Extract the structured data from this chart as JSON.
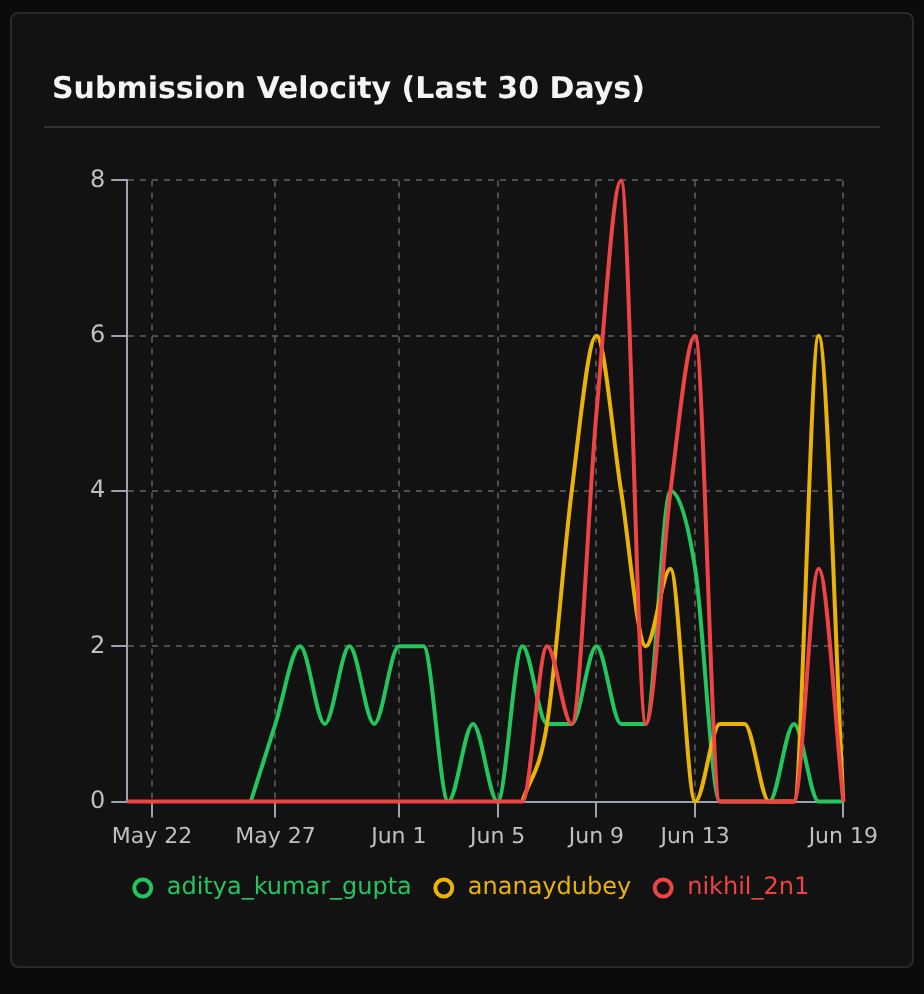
{
  "chart_data": {
    "type": "line",
    "title": "Submission Velocity (Last 30 Days)",
    "categories": [
      null,
      "May 22",
      null,
      null,
      null,
      null,
      "May 27",
      null,
      null,
      null,
      null,
      "Jun 1",
      null,
      null,
      null,
      "Jun 5",
      null,
      null,
      null,
      "Jun 9",
      null,
      null,
      null,
      "Jun 13",
      null,
      null,
      null,
      null,
      null,
      "Jun 19"
    ],
    "series": [
      {
        "name": "aditya_kumar_gupta",
        "color": "#22c55e",
        "values": [
          null,
          null,
          null,
          null,
          null,
          0,
          1,
          2,
          1,
          2,
          1,
          2,
          2,
          0,
          1,
          0,
          2,
          1,
          1,
          2,
          1,
          1,
          4,
          3,
          0,
          0,
          0,
          1,
          0,
          0
        ]
      },
      {
        "name": "ananaydubey",
        "color": "#eab308",
        "values": [
          null,
          null,
          null,
          null,
          null,
          null,
          null,
          null,
          null,
          null,
          null,
          null,
          null,
          null,
          null,
          null,
          0,
          1,
          4,
          6,
          4,
          2,
          3,
          0,
          1,
          1,
          0,
          0,
          6,
          0
        ]
      },
      {
        "name": "nikhil_2n1",
        "color": "#ef4444",
        "values": [
          0,
          0,
          0,
          0,
          0,
          0,
          0,
          0,
          0,
          0,
          0,
          0,
          0,
          0,
          0,
          0,
          0,
          2,
          1,
          5,
          8,
          1,
          4,
          6,
          0,
          0,
          0,
          0,
          3,
          0
        ]
      }
    ],
    "ylim": [
      0,
      8
    ],
    "yticks": [
      0,
      2,
      4,
      6,
      8
    ],
    "grid": true,
    "legend": "bottom",
    "marker": "none",
    "line_style": "solid"
  }
}
